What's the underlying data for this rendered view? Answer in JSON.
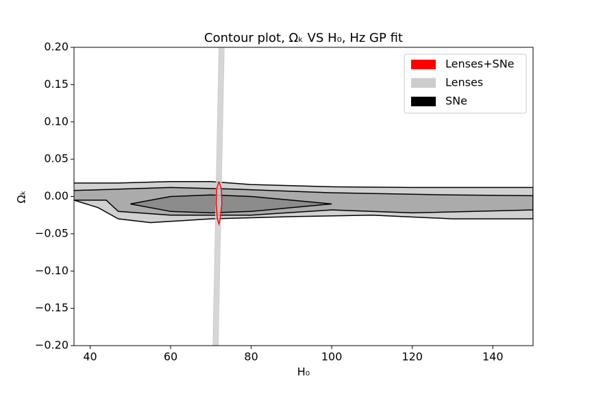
{
  "chart_data": {
    "type": "contour",
    "title": "Contour plot, Ωₖ VS H₀, Hz GP fit",
    "x_label": "H₀",
    "y_label": "Ωₖ",
    "xlim": [
      36,
      150
    ],
    "ylim": [
      -0.2,
      0.2
    ],
    "xticks": [
      40,
      60,
      80,
      100,
      120,
      140
    ],
    "yticks": [
      {
        "value": -0.2,
        "label": "−0.20"
      },
      {
        "value": -0.15,
        "label": "−0.15"
      },
      {
        "value": -0.1,
        "label": "−0.10"
      },
      {
        "value": -0.05,
        "label": "−0.05"
      },
      {
        "value": 0,
        "label": "0.00"
      },
      {
        "value": 0.05,
        "label": "0.05"
      },
      {
        "value": 0.1,
        "label": "0.10"
      },
      {
        "value": 0.15,
        "label": "0.15"
      },
      {
        "value": 0.2,
        "label": "0.20"
      }
    ],
    "legend": "upper right",
    "series": [
      {
        "name": "Lenses+SNe",
        "color": "#ff0000",
        "contours": [
          {
            "x": [
              72,
              72.6,
              72.7,
              72.3,
              72,
              71.6,
              71.3,
              71.4,
              72
            ],
            "y": [
              0.02,
              0.01,
              -0.01,
              -0.03,
              -0.037,
              -0.03,
              -0.01,
              0.01,
              0.02
            ]
          }
        ]
      },
      {
        "name": "Lenses",
        "color": "#cccccc",
        "contours": [
          {
            "x": [
              70.5,
              72,
              73.3,
              71.8,
              70.5
            ],
            "y": [
              -0.2,
              0.2,
              0.2,
              -0.2,
              -0.2
            ]
          }
        ]
      },
      {
        "name": "SNe",
        "color": "#000000",
        "contours": [
          {
            "x": [
              36,
              47,
              60,
              70,
              80,
              100,
              120,
              140,
              150,
              150,
              140,
              130,
              110,
              90,
              70,
              55,
              47,
              42,
              36
            ],
            "y": [
              0.018,
              0.018,
              0.02,
              0.02,
              0.016,
              0.013,
              0.012,
              0.012,
              0.012,
              -0.03,
              -0.03,
              -0.03,
              -0.025,
              -0.027,
              -0.03,
              -0.035,
              -0.03,
              -0.015,
              -0.005
            ]
          },
          {
            "x": [
              36,
              60,
              75,
              100,
              130,
              150,
              150,
              120,
              100,
              80,
              60,
              47,
              44,
              36
            ],
            "y": [
              0.008,
              0.012,
              0.01,
              0.005,
              0.002,
              0.001,
              -0.018,
              -0.022,
              -0.018,
              -0.025,
              -0.025,
              -0.02,
              -0.005,
              -0.005
            ]
          },
          {
            "x": [
              50,
              60,
              70,
              80,
              90,
              100,
              90,
              80,
              70,
              60,
              50
            ],
            "y": [
              -0.01,
              0,
              0.002,
              0,
              -0.005,
              -0.01,
              -0.015,
              -0.02,
              -0.022,
              -0.02,
              -0.01
            ]
          }
        ]
      }
    ]
  }
}
